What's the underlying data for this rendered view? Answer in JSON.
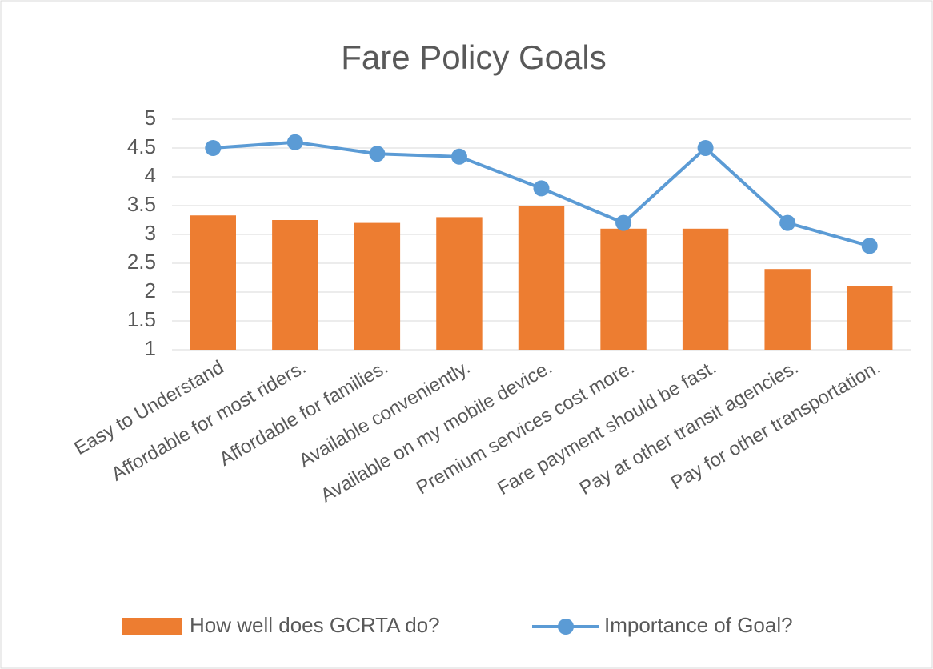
{
  "chart_data": {
    "type": "bar-line",
    "title": "Fare Policy Goals",
    "categories": [
      "Easy to Understand",
      "Affordable for most riders.",
      "Affordable for families.",
      "Available conveniently.",
      "Available on my mobile device.",
      "Premium services cost more.",
      "Fare payment should be fast.",
      "Pay at other transit agencies.",
      "Pay for other transportation."
    ],
    "series": [
      {
        "name": "How well does GCRTA do?",
        "type": "bar",
        "color": "#ed7d31",
        "values": [
          3.33,
          3.25,
          3.2,
          3.3,
          3.5,
          3.1,
          3.1,
          2.4,
          2.1
        ]
      },
      {
        "name": "Importance of Goal?",
        "type": "line",
        "color": "#5b9bd5",
        "values": [
          4.5,
          4.6,
          4.4,
          4.35,
          3.8,
          3.2,
          4.5,
          3.2,
          2.8
        ]
      }
    ],
    "ylim": [
      1,
      5
    ],
    "yticks": [
      1,
      1.5,
      2,
      2.5,
      3,
      3.5,
      4,
      4.5,
      5
    ],
    "grid": true,
    "legend": "bottom"
  }
}
